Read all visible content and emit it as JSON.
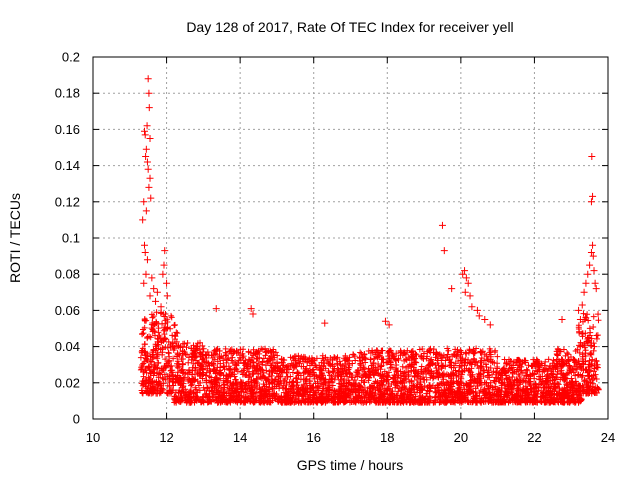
{
  "chart_data": {
    "type": "scatter",
    "title": "Day 128 of 2017, Rate Of TEC Index for receiver yell",
    "xlabel": "GPS time / hours",
    "ylabel": "ROTI / TECUs",
    "xlim": [
      10,
      24
    ],
    "ylim": [
      0,
      0.2
    ],
    "xticks": [
      10,
      12,
      14,
      16,
      18,
      20,
      22,
      24
    ],
    "xtick_labels": [
      "10",
      "12",
      "14",
      "16",
      "18",
      "20",
      "22",
      "24"
    ],
    "yticks": [
      0,
      0.02,
      0.04,
      0.06,
      0.08,
      0.1,
      0.12,
      0.14,
      0.16,
      0.18,
      0.2
    ],
    "ytick_labels": [
      "0",
      "0.02",
      "0.04",
      "0.06",
      "0.08",
      "0.1",
      "0.12",
      "0.14",
      "0.16",
      "0.18",
      "0.2"
    ],
    "grid": true,
    "marker": "+",
    "series": [
      {
        "name": "ROTI",
        "color": "#ff0000",
        "note": "Dense band of roughly 0.005-0.04 TECU/s between 11.3 h and 23.7 h; listed points are the visible outliers/peaks.",
        "points": [
          [
            11.35,
            0.11
          ],
          [
            11.38,
            0.12
          ],
          [
            11.4,
            0.159
          ],
          [
            11.42,
            0.157
          ],
          [
            11.45,
            0.149
          ],
          [
            11.47,
            0.162
          ],
          [
            11.5,
            0.188
          ],
          [
            11.52,
            0.18
          ],
          [
            11.53,
            0.172
          ],
          [
            11.55,
            0.155
          ],
          [
            11.43,
            0.145
          ],
          [
            11.48,
            0.142
          ],
          [
            11.5,
            0.138
          ],
          [
            11.55,
            0.133
          ],
          [
            11.52,
            0.128
          ],
          [
            11.57,
            0.122
          ],
          [
            11.45,
            0.115
          ],
          [
            11.4,
            0.096
          ],
          [
            11.42,
            0.092
          ],
          [
            11.48,
            0.088
          ],
          [
            11.44,
            0.08
          ],
          [
            11.38,
            0.075
          ],
          [
            11.6,
            0.078
          ],
          [
            11.65,
            0.072
          ],
          [
            11.55,
            0.068
          ],
          [
            11.7,
            0.065
          ],
          [
            11.75,
            0.07
          ],
          [
            11.9,
            0.08
          ],
          [
            11.95,
            0.093
          ],
          [
            12.0,
            0.075
          ],
          [
            11.93,
            0.085
          ],
          [
            12.02,
            0.068
          ],
          [
            11.85,
            0.062
          ],
          [
            13.35,
            0.061
          ],
          [
            14.3,
            0.061
          ],
          [
            14.35,
            0.058
          ],
          [
            16.3,
            0.053
          ],
          [
            17.95,
            0.054
          ],
          [
            18.05,
            0.052
          ],
          [
            19.5,
            0.107
          ],
          [
            19.55,
            0.093
          ],
          [
            19.75,
            0.072
          ],
          [
            20.05,
            0.08
          ],
          [
            20.1,
            0.082
          ],
          [
            20.15,
            0.078
          ],
          [
            20.2,
            0.075
          ],
          [
            20.12,
            0.07
          ],
          [
            20.25,
            0.068
          ],
          [
            20.3,
            0.062
          ],
          [
            20.45,
            0.06
          ],
          [
            20.5,
            0.057
          ],
          [
            20.65,
            0.055
          ],
          [
            20.8,
            0.052
          ],
          [
            22.75,
            0.055
          ],
          [
            23.2,
            0.06
          ],
          [
            23.25,
            0.055
          ],
          [
            23.3,
            0.063
          ],
          [
            23.35,
            0.07
          ],
          [
            23.4,
            0.075
          ],
          [
            23.45,
            0.08
          ],
          [
            23.5,
            0.085
          ],
          [
            23.55,
            0.092
          ],
          [
            23.58,
            0.096
          ],
          [
            23.6,
            0.09
          ],
          [
            23.62,
            0.082
          ],
          [
            23.65,
            0.075
          ],
          [
            23.68,
            0.072
          ],
          [
            23.55,
            0.12
          ],
          [
            23.58,
            0.123
          ],
          [
            23.56,
            0.145
          ]
        ]
      }
    ]
  }
}
